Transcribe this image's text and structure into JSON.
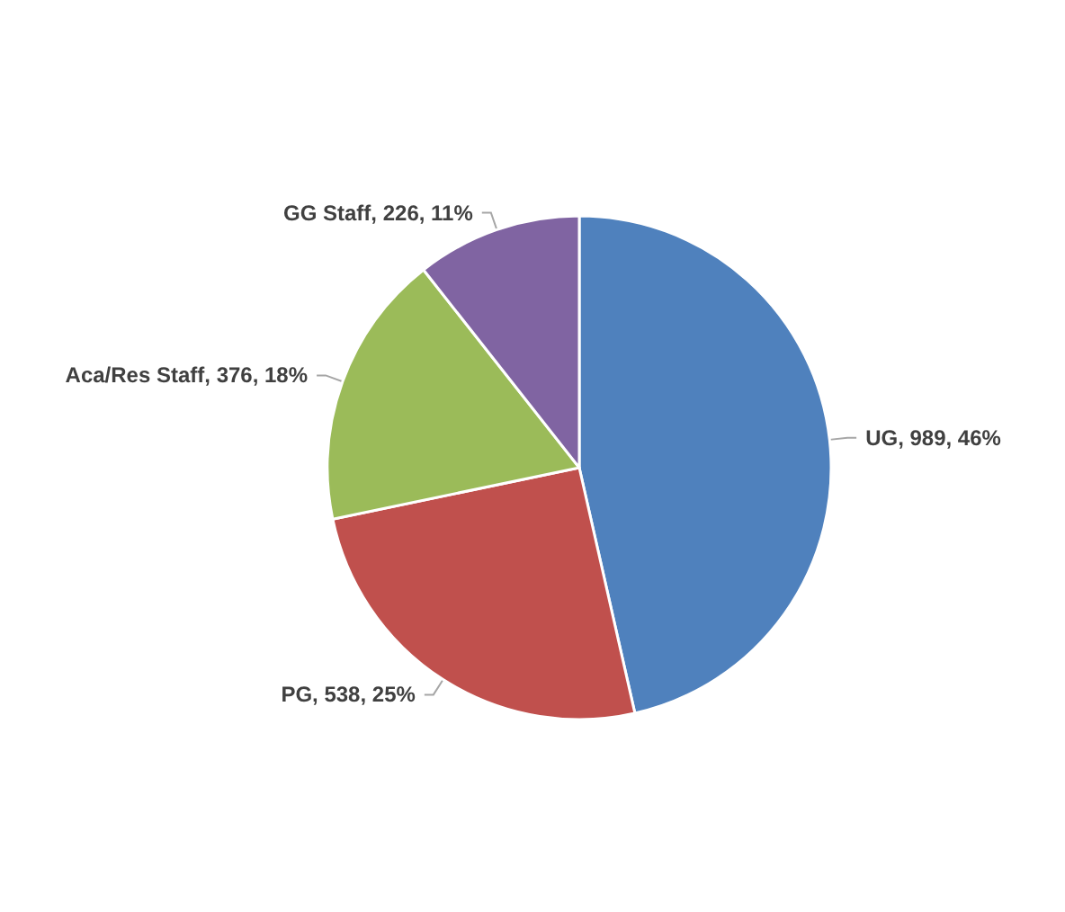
{
  "chart_data": {
    "type": "pie",
    "categories": [
      "UG",
      "PG",
      "Aca/Res Staff",
      "GG Staff"
    ],
    "values": [
      989,
      538,
      376,
      226
    ],
    "colors": [
      "#4f81bd",
      "#c0504d",
      "#9bbb59",
      "#8064a2"
    ],
    "value_labels": [
      "989, 46%",
      "538, 25%",
      "376, 18%",
      "226, 11%"
    ],
    "legend": false
  }
}
